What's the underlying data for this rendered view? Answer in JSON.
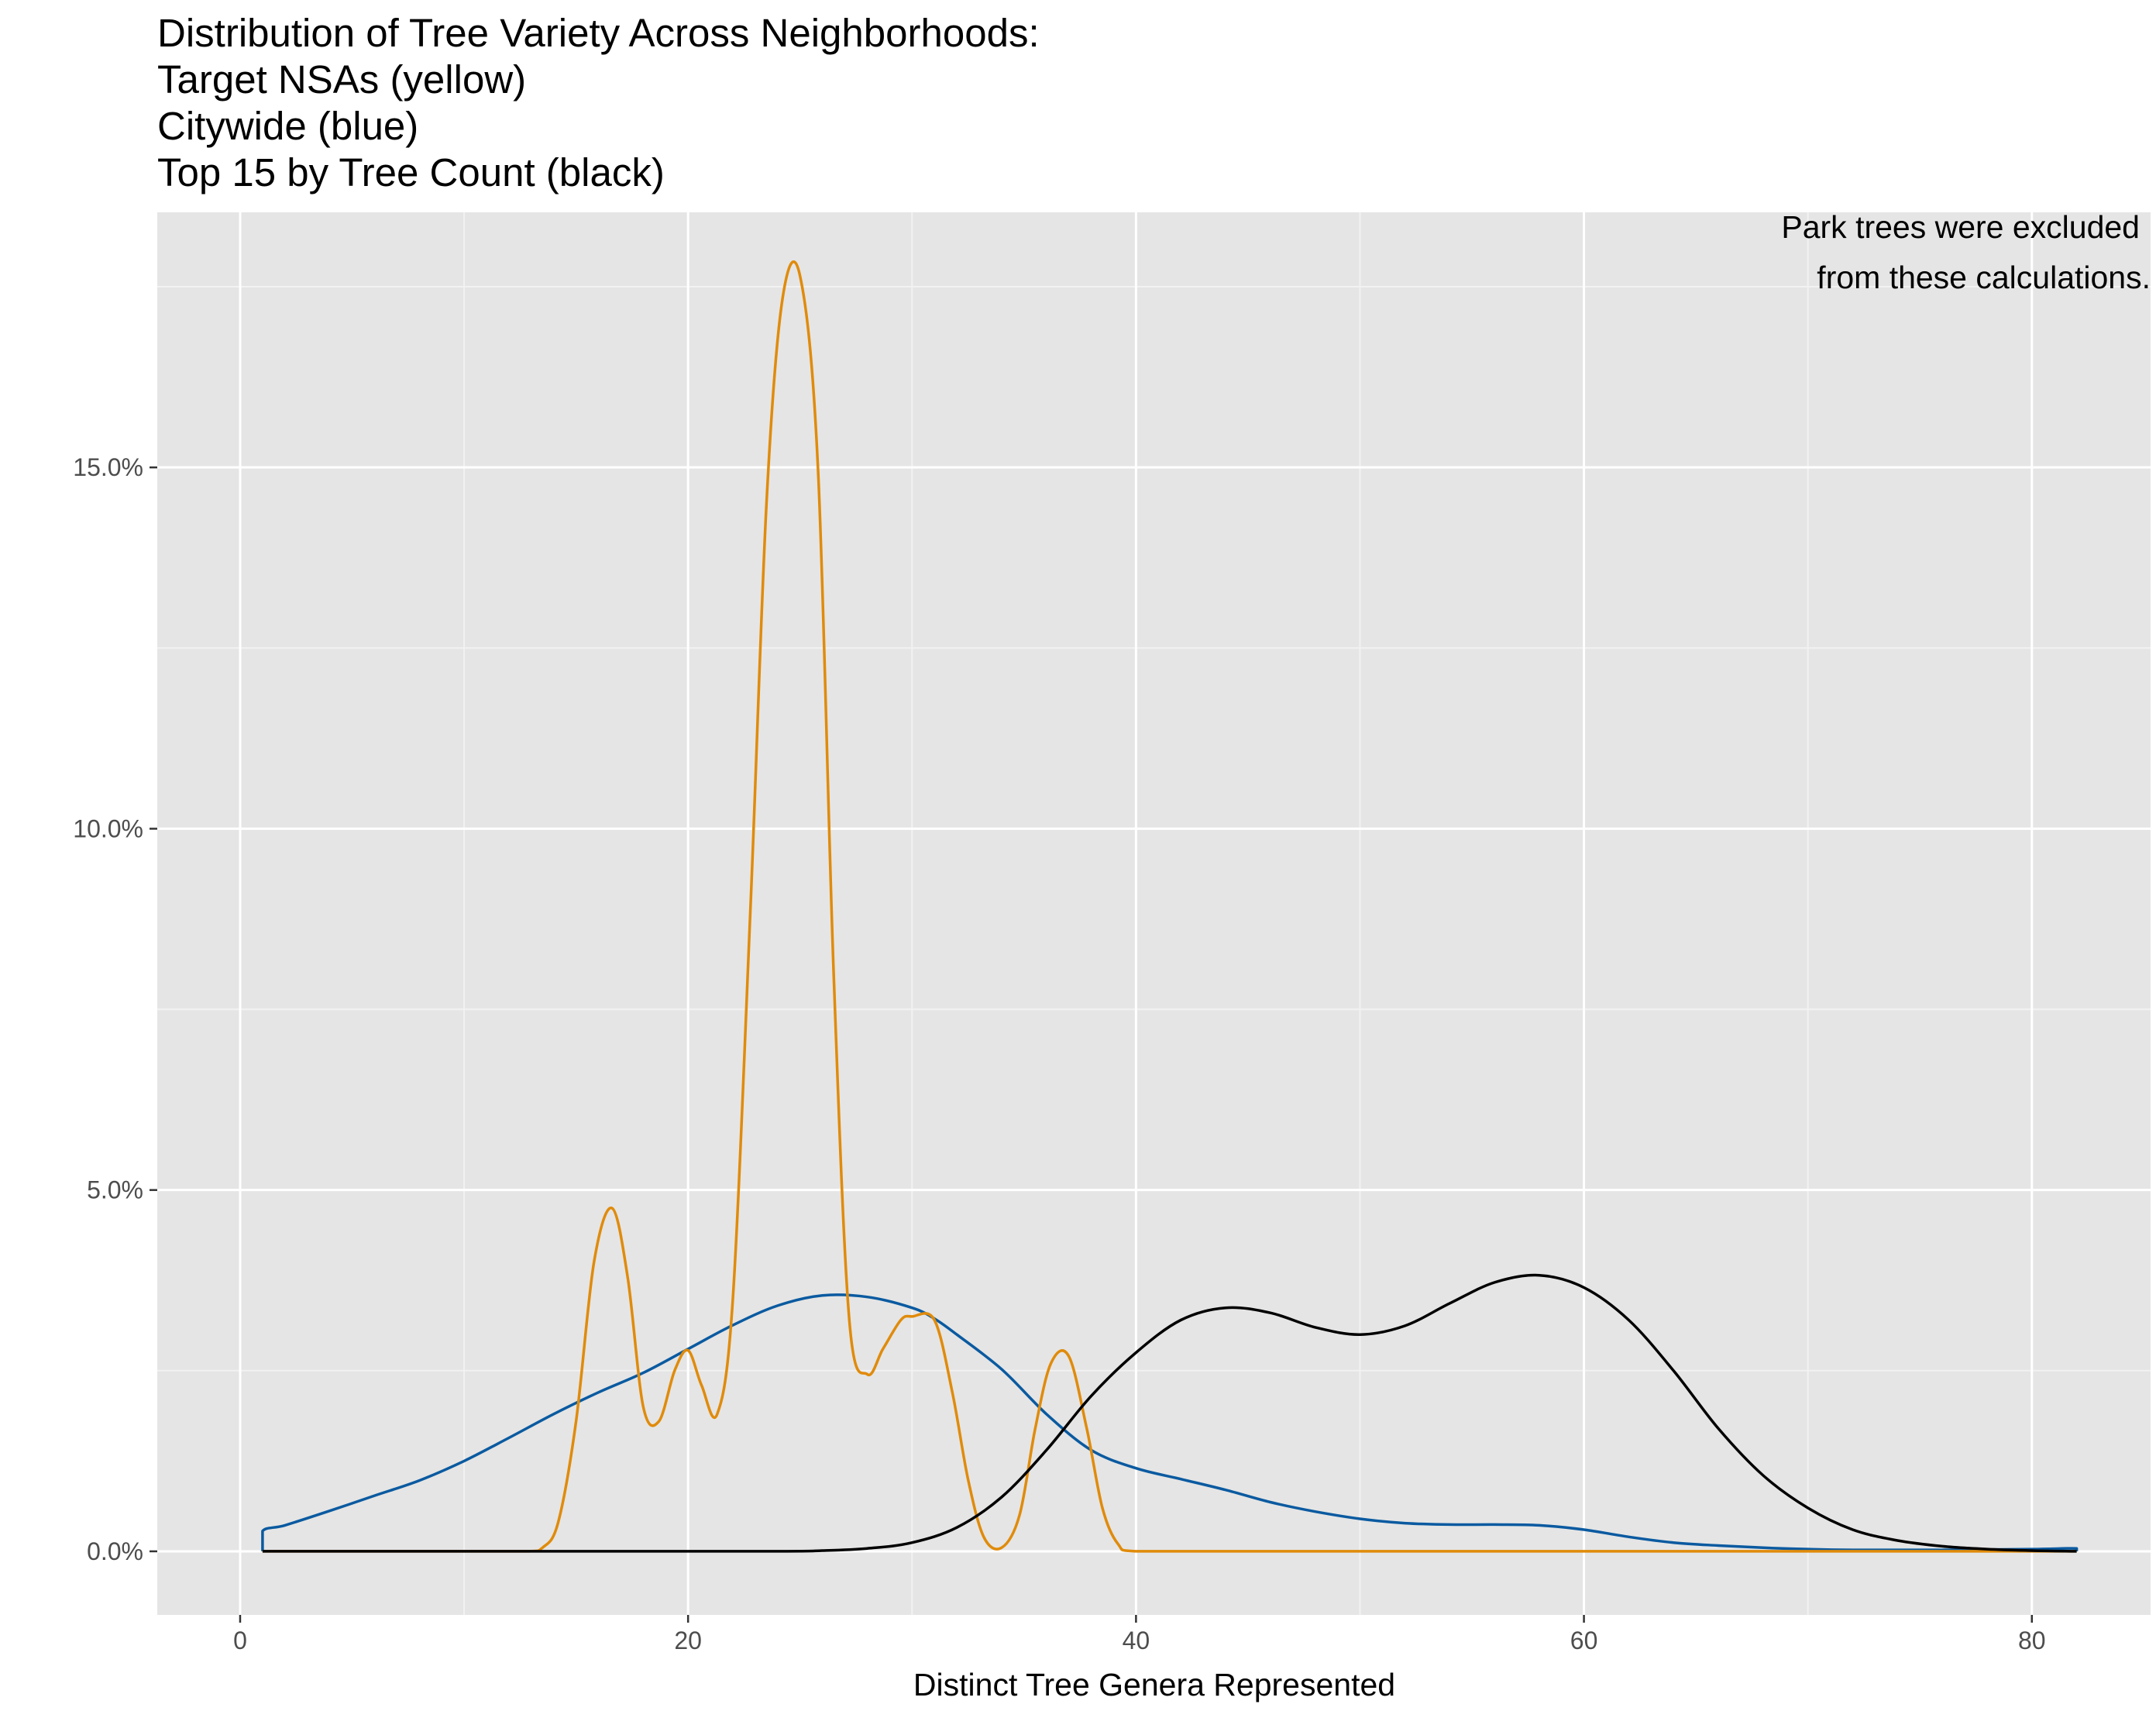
{
  "chart_data": {
    "type": "line",
    "title": [
      "Distribution of Tree Variety Across Neighborhoods:",
      "Target NSAs (yellow)",
      "Citywide (blue)",
      "Top 15 by Tree Count (black)"
    ],
    "annotation": [
      "Park trees were excluded",
      "from these calculations."
    ],
    "xlabel": "Distinct Tree Genera Represented",
    "ylabel": "",
    "xlim": [
      -3.7,
      85.3
    ],
    "ylim": [
      -0.0088,
      0.1853
    ],
    "x_ticks": [
      0,
      20,
      40,
      60,
      80
    ],
    "x_tick_labels": [
      "0",
      "20",
      "40",
      "60",
      "80"
    ],
    "y_ticks": [
      0.0,
      0.05,
      0.1,
      0.15
    ],
    "y_tick_labels": [
      "0.0%",
      "5.0%",
      "10.0%",
      "15.0%"
    ],
    "grid": true,
    "legend": "none",
    "series": [
      {
        "color": "#0a5aa0",
        "x": [
          1.0,
          1.0,
          2.0,
          4.0,
          6.0,
          8.0,
          10.0,
          12.0,
          14.0,
          16.0,
          18.0,
          20.0,
          22.0,
          24.0,
          26.0,
          28.0,
          30.0,
          31.0,
          32.0,
          34.0,
          36.0,
          38.0,
          40.0,
          42.0,
          44.0,
          46.0,
          48.0,
          50.0,
          52.0,
          54.0,
          56.0,
          58.0,
          60.0,
          62.0,
          64.0,
          66.0,
          68.0,
          70.0,
          72.0,
          76.0,
          80.0,
          82.0,
          82.0
        ],
        "values": [
          0.0,
          0.0028,
          0.0036,
          0.0056,
          0.0077,
          0.0098,
          0.0125,
          0.0157,
          0.019,
          0.022,
          0.0247,
          0.028,
          0.0313,
          0.034,
          0.0354,
          0.0352,
          0.0337,
          0.0322,
          0.03,
          0.0252,
          0.019,
          0.014,
          0.0115,
          0.01,
          0.0085,
          0.0068,
          0.0055,
          0.0045,
          0.0039,
          0.0037,
          0.0037,
          0.0036,
          0.003,
          0.002,
          0.0012,
          0.0008,
          0.0005,
          0.0003,
          0.0002,
          0.0002,
          0.0003,
          0.0004,
          0.0
        ]
      },
      {
        "color": "#e08b0b",
        "x": [
          1.0,
          12.8,
          13.5,
          14.2,
          15.0,
          15.8,
          16.6,
          17.3,
          18.0,
          18.7,
          19.4,
          20.0,
          20.6,
          21.3,
          22.0,
          22.8,
          23.5,
          24.2,
          25.0,
          25.8,
          26.5,
          27.2,
          28.0,
          28.7,
          29.5,
          30.0,
          31.0,
          31.8,
          32.5,
          33.2,
          34.0,
          34.8,
          35.5,
          36.2,
          37.0,
          37.8,
          38.5,
          39.2,
          40.0,
          82.0
        ],
        "values": [
          0.0,
          0.0,
          0.0005,
          0.004,
          0.018,
          0.04,
          0.0475,
          0.038,
          0.02,
          0.018,
          0.025,
          0.0278,
          0.023,
          0.019,
          0.035,
          0.09,
          0.145,
          0.173,
          0.1765,
          0.15,
          0.08,
          0.032,
          0.0245,
          0.028,
          0.032,
          0.0325,
          0.032,
          0.022,
          0.01,
          0.002,
          0.0005,
          0.005,
          0.017,
          0.026,
          0.027,
          0.017,
          0.006,
          0.001,
          0.0,
          0.0
        ]
      },
      {
        "color": "#000000",
        "x": [
          1.0,
          24.0,
          26.0,
          28.0,
          30.0,
          32.0,
          34.0,
          36.0,
          38.0,
          40.0,
          42.0,
          44.0,
          46.0,
          48.0,
          50.0,
          52.0,
          54.0,
          56.0,
          58.0,
          60.0,
          62.0,
          64.0,
          66.0,
          68.0,
          70.0,
          72.0,
          74.0,
          76.0,
          78.0,
          80.0,
          82.0
        ],
        "values": [
          0.0,
          0.0,
          0.0001,
          0.0004,
          0.0012,
          0.0033,
          0.0075,
          0.014,
          0.0215,
          0.0275,
          0.032,
          0.0337,
          0.033,
          0.031,
          0.03,
          0.0312,
          0.0343,
          0.0372,
          0.0382,
          0.0365,
          0.032,
          0.025,
          0.017,
          0.0105,
          0.006,
          0.003,
          0.0015,
          0.0007,
          0.0003,
          0.0001,
          0.0
        ]
      }
    ]
  }
}
